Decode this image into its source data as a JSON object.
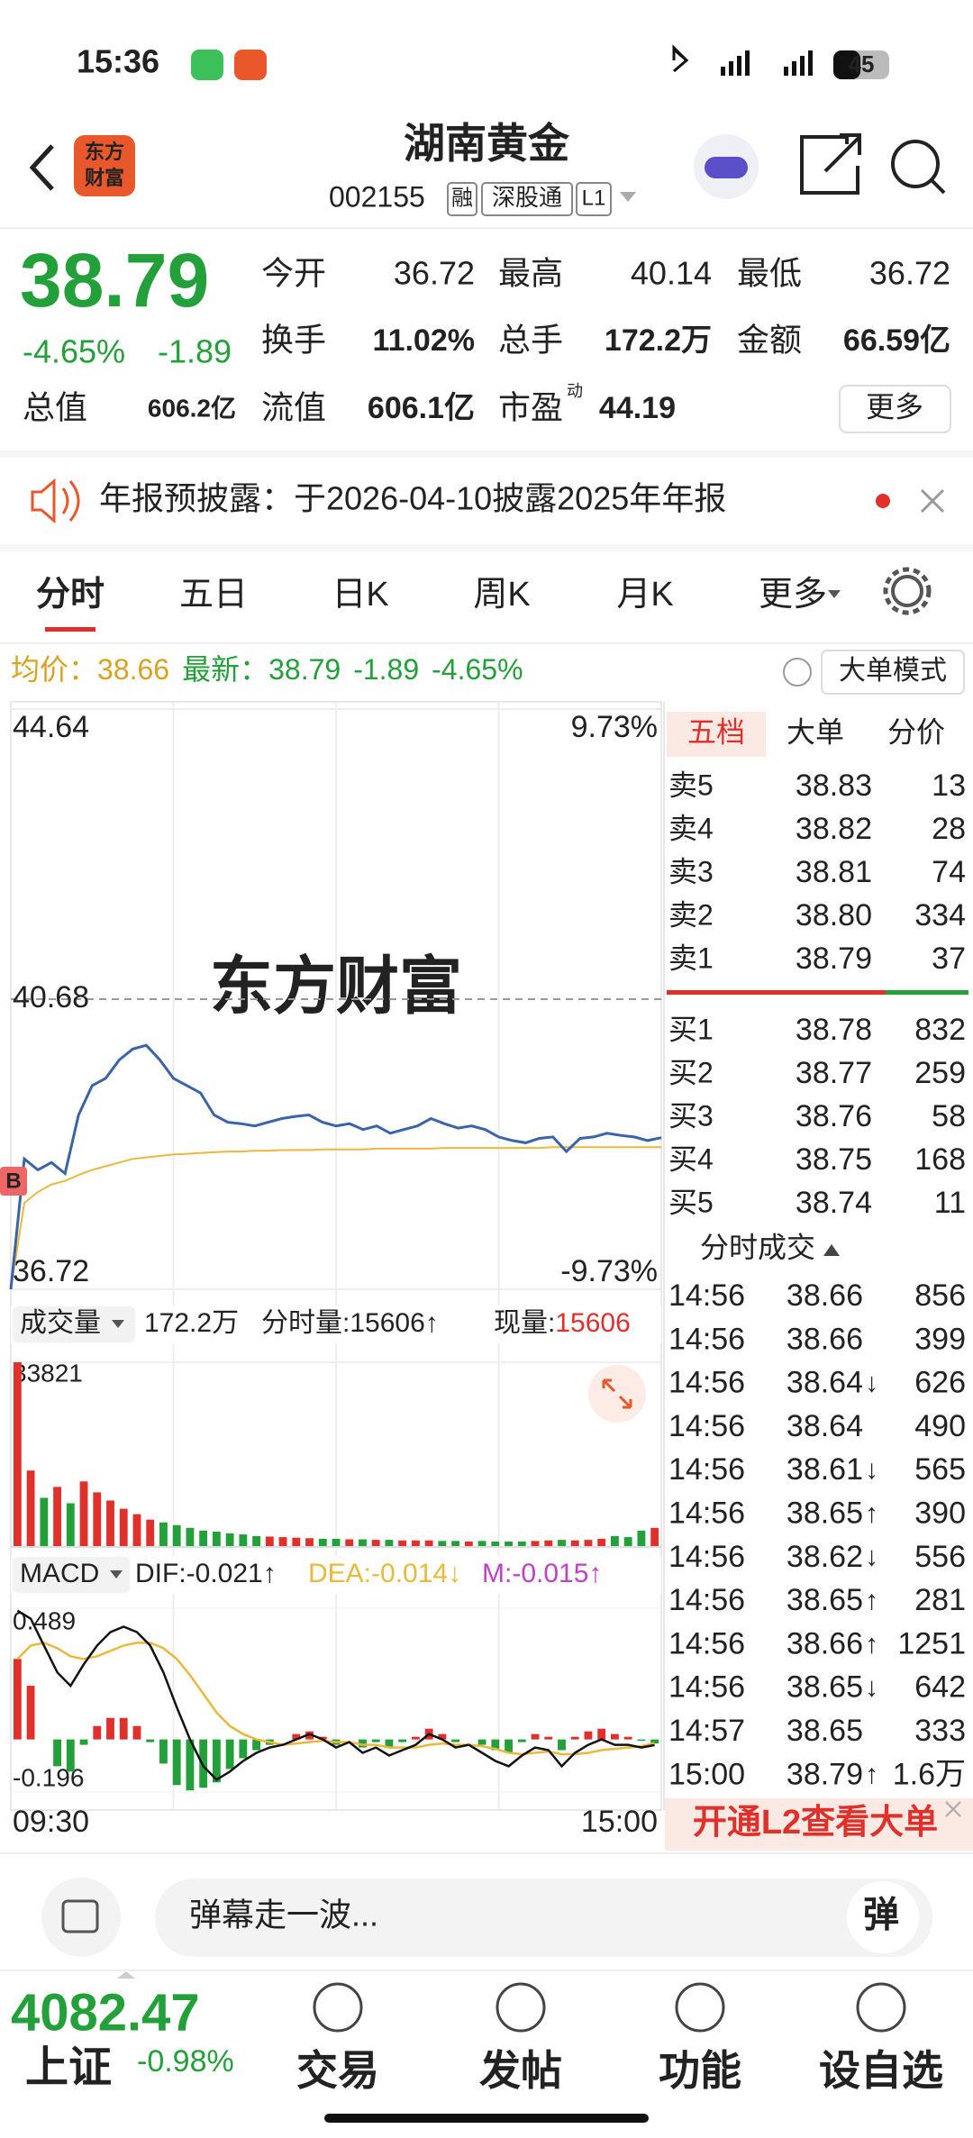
{
  "status_bar": {
    "time": "15:36",
    "battery": "45"
  },
  "header": {
    "logo": [
      "东方",
      "财富"
    ],
    "title": "湖南黄金",
    "code": "002155",
    "tags": [
      "融",
      "深股通",
      "L1"
    ]
  },
  "quote": {
    "price": "38.79",
    "change_pct": "-4.65%",
    "change": "-1.89",
    "fields": [
      {
        "label": "今开",
        "value": "36.72"
      },
      {
        "label": "最高",
        "value": "40.14"
      },
      {
        "label": "最低",
        "value": "36.72"
      },
      {
        "label": "换手",
        "value": "11.02%"
      },
      {
        "label": "总手",
        "value": "172.2万"
      },
      {
        "label": "金额",
        "value": "66.59亿"
      },
      {
        "label": "总值",
        "value": "606.2亿"
      },
      {
        "label": "流值",
        "value": "606.1亿"
      },
      {
        "label": "市盈",
        "sup": "动",
        "value": "44.19"
      }
    ],
    "more": "更多"
  },
  "notice": "年报预披露：于2026-04-10披露2025年年报",
  "tabs": [
    "分时",
    "五日",
    "日K",
    "周K",
    "月K",
    "更多"
  ],
  "info_line": {
    "avg_label": "均价：",
    "avg": "38.66",
    "last_label": "最新：",
    "last": "38.79",
    "change": "-1.89",
    "change_pct": "-4.65%",
    "mode": "大单模式"
  },
  "watermark": "东方财富",
  "buy_marker": "B",
  "volume_header": {
    "label": "成交量",
    "total": "172.2万",
    "period": "分时量:15606↑",
    "current_label": "现量:",
    "current": "15606"
  },
  "macd_header": {
    "label": "MACD",
    "dif": "DIF:-0.021↑",
    "dea": "DEA:-0.014↓",
    "m": "M:-0.015↑"
  },
  "x_labels": [
    "09:30",
    "15:00"
  ],
  "chart_data": [
    {
      "type": "line",
      "ylim": [
        36.72,
        44.64
      ],
      "yticks": [
        36.72,
        40.68,
        44.64
      ],
      "ytick_colors": [
        "#23a03a",
        "#999999",
        "#e0302c"
      ],
      "y2lim": [
        -9.73,
        9.73
      ],
      "y2ticks": [
        {
          "value": -9.73,
          "label": "-9.73%"
        },
        {
          "value": 9.73,
          "label": "9.73%"
        }
      ],
      "y2tick_colors": [
        "#23a03a",
        "#e0302c"
      ],
      "series": [
        {
          "color": "#3a64a8",
          "values": [
            36.72,
            38.5,
            38.35,
            38.45,
            38.3,
            39.1,
            39.5,
            39.6,
            39.85,
            40.0,
            40.05,
            39.85,
            39.6,
            39.5,
            39.4,
            39.1,
            39.0,
            38.98,
            38.95,
            39.0,
            39.05,
            39.08,
            39.1,
            39.0,
            38.95,
            38.98,
            38.9,
            38.95,
            38.85,
            38.9,
            38.95,
            39.05,
            38.98,
            38.92,
            38.95,
            38.9,
            38.8,
            38.75,
            38.72,
            38.78,
            38.8,
            38.6,
            38.78,
            38.8,
            38.85,
            38.82,
            38.8,
            38.75,
            38.79
          ]
        },
        {
          "color": "#e8b93a",
          "values": [
            36.72,
            37.9,
            38.05,
            38.15,
            38.2,
            38.28,
            38.35,
            38.4,
            38.45,
            38.5,
            38.52,
            38.54,
            38.56,
            38.57,
            38.58,
            38.59,
            38.6,
            38.6,
            38.61,
            38.61,
            38.62,
            38.62,
            38.62,
            38.63,
            38.63,
            38.63,
            38.63,
            38.64,
            38.64,
            38.64,
            38.64,
            38.64,
            38.65,
            38.65,
            38.65,
            38.65,
            38.65,
            38.65,
            38.65,
            38.65,
            38.66,
            38.66,
            38.66,
            38.66,
            38.66,
            38.66,
            38.66,
            38.66,
            38.66
          ]
        }
      ]
    },
    {
      "type": "bar",
      "ylim": [
        0,
        33821
      ],
      "yticks": [
        33821
      ],
      "colors": {
        "up": "#e0302c",
        "down": "#23a03a"
      },
      "values": [
        33821,
        14000,
        9000,
        11000,
        8000,
        12000,
        10000,
        8500,
        7000,
        6000,
        5000,
        4500,
        4000,
        3500,
        3000,
        2800,
        2500,
        2300,
        2000,
        1900,
        1800,
        1700,
        1600,
        1500,
        1500,
        1400,
        1400,
        1300,
        1300,
        1200,
        1200,
        1200,
        1100,
        1100,
        1000,
        1100,
        1000,
        1000,
        1000,
        1100,
        1200,
        1300,
        1200,
        1300,
        1500,
        2000,
        1800,
        3000,
        3500
      ]
    },
    {
      "type": "macd",
      "ylim": [
        -0.196,
        0.489
      ],
      "yticks": [
        -0.196,
        0.489
      ],
      "colors": {
        "up": "#e0302c",
        "down": "#23a03a"
      },
      "series": [
        {
          "color": "#111111",
          "values": [
            0.48,
            0.45,
            0.35,
            0.25,
            0.2,
            0.28,
            0.35,
            0.4,
            0.42,
            0.4,
            0.35,
            0.25,
            0.12,
            0.0,
            -0.1,
            -0.15,
            -0.12,
            -0.08,
            -0.05,
            -0.03,
            -0.02,
            0.0,
            0.02,
            0.0,
            -0.03,
            -0.01,
            -0.05,
            -0.03,
            -0.06,
            -0.04,
            -0.02,
            0.02,
            0.0,
            -0.03,
            -0.02,
            -0.05,
            -0.08,
            -0.1,
            -0.06,
            -0.03,
            -0.04,
            -0.1,
            -0.05,
            -0.02,
            0.0,
            -0.02,
            -0.02,
            -0.03,
            -0.021
          ]
        },
        {
          "color": "#e8b93a",
          "values": [
            0.3,
            0.35,
            0.36,
            0.34,
            0.31,
            0.3,
            0.31,
            0.33,
            0.35,
            0.36,
            0.36,
            0.34,
            0.3,
            0.24,
            0.17,
            0.1,
            0.05,
            0.02,
            0.0,
            -0.01,
            -0.02,
            -0.015,
            -0.01,
            -0.005,
            -0.01,
            -0.01,
            -0.02,
            -0.02,
            -0.03,
            -0.03,
            -0.03,
            -0.02,
            -0.015,
            -0.02,
            -0.02,
            -0.025,
            -0.035,
            -0.05,
            -0.055,
            -0.05,
            -0.045,
            -0.055,
            -0.055,
            -0.05,
            -0.04,
            -0.035,
            -0.03,
            -0.025,
            -0.014
          ]
        },
        {
          "values": [
            0.3,
            0.2,
            0.0,
            -0.1,
            -0.12,
            -0.02,
            0.05,
            0.08,
            0.08,
            0.05,
            -0.01,
            -0.09,
            -0.17,
            -0.19,
            -0.18,
            -0.16,
            -0.11,
            -0.07,
            -0.04,
            -0.02,
            0.0,
            0.02,
            0.03,
            0.01,
            -0.02,
            0.0,
            -0.03,
            -0.01,
            -0.03,
            -0.01,
            0.01,
            0.04,
            0.02,
            -0.01,
            0.0,
            -0.02,
            -0.04,
            -0.05,
            -0.01,
            0.02,
            0.01,
            -0.04,
            0.01,
            0.03,
            0.04,
            0.02,
            0.01,
            -0.005,
            -0.015
          ]
        }
      ]
    }
  ],
  "order_book": {
    "tabs": [
      "五档",
      "大单",
      "分价"
    ],
    "asks": [
      {
        "label": "卖5",
        "price": "38.83",
        "volume": "13"
      },
      {
        "label": "卖4",
        "price": "38.82",
        "volume": "28"
      },
      {
        "label": "卖3",
        "price": "38.81",
        "volume": "74"
      },
      {
        "label": "卖2",
        "price": "38.80",
        "volume": "334"
      },
      {
        "label": "卖1",
        "price": "38.79",
        "volume": "37"
      }
    ],
    "bids": [
      {
        "label": "买1",
        "price": "38.78",
        "volume": "832"
      },
      {
        "label": "买2",
        "price": "38.77",
        "volume": "259"
      },
      {
        "label": "买3",
        "price": "38.76",
        "volume": "58"
      },
      {
        "label": "买4",
        "price": "38.75",
        "volume": "168"
      },
      {
        "label": "买5",
        "price": "38.74",
        "volume": "11"
      }
    ]
  },
  "trades": {
    "title": "分时成交",
    "rows": [
      {
        "time": "14:56",
        "price": "38.66",
        "arrow": "",
        "volume": "856",
        "color": "#e0302c"
      },
      {
        "time": "14:56",
        "price": "38.66",
        "arrow": "",
        "volume": "399",
        "color": "#23a03a"
      },
      {
        "time": "14:56",
        "price": "38.64",
        "arrow": "↓",
        "volume": "626",
        "color": "#23a03a"
      },
      {
        "time": "14:56",
        "price": "38.64",
        "arrow": "",
        "volume": "490",
        "color": "#e0302c"
      },
      {
        "time": "14:56",
        "price": "38.61",
        "arrow": "↓",
        "volume": "565",
        "color": "#23a03a"
      },
      {
        "time": "14:56",
        "price": "38.65",
        "arrow": "↑",
        "volume": "390",
        "color": "#e0302c"
      },
      {
        "time": "14:56",
        "price": "38.62",
        "arrow": "↓",
        "volume": "556",
        "color": "#23a03a"
      },
      {
        "time": "14:56",
        "price": "38.65",
        "arrow": "↑",
        "volume": "281",
        "color": "#e0302c"
      },
      {
        "time": "14:56",
        "price": "38.66",
        "arrow": "↑",
        "volume": "1251",
        "color": "#e0302c"
      },
      {
        "time": "14:56",
        "price": "38.65",
        "arrow": "↓",
        "volume": "642",
        "color": "#23a03a"
      },
      {
        "time": "14:57",
        "price": "38.65",
        "arrow": "",
        "volume": "333",
        "color": "#23a03a"
      },
      {
        "time": "15:00",
        "price": "38.79",
        "arrow": "↑",
        "volume": "1.6万",
        "color": "#e0302c"
      }
    ]
  },
  "l2_banner": "开通L2查看大单",
  "comment": {
    "placeholder": "弹幕走一波...",
    "button": "弹"
  },
  "tab_bar": {
    "index_value": "4082.47",
    "index_name": "上证",
    "index_change": "-0.98%",
    "items": [
      "交易",
      "发帖",
      "功能",
      "设自选"
    ]
  }
}
